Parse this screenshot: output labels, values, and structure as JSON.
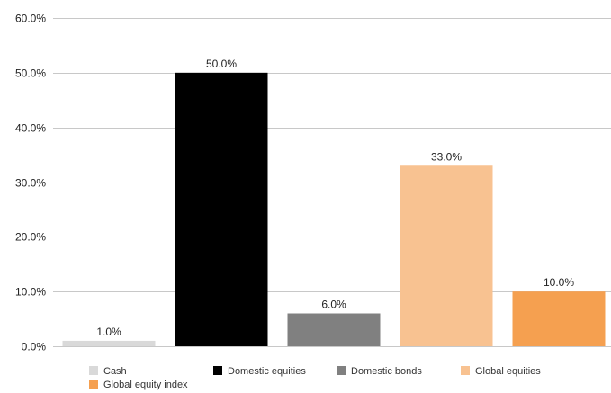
{
  "chart_data": {
    "type": "bar",
    "title": "",
    "xlabel": "",
    "ylabel": "",
    "ylim": [
      0,
      60
    ],
    "y_ticks": [
      0,
      10,
      20,
      30,
      40,
      50,
      60
    ],
    "y_tick_labels": [
      "0.0%",
      "10.0%",
      "20.0%",
      "30.0%",
      "40.0%",
      "50.0%",
      "60.0%"
    ],
    "grid": true,
    "legend_position": "bottom",
    "categories": [
      "Cash",
      "Domestic equities",
      "Domestic bonds",
      "Global equities",
      "Global equity index"
    ],
    "values": [
      1.0,
      50.0,
      6.0,
      33.0,
      10.0
    ],
    "data_labels": [
      "1.0%",
      "50.0%",
      "6.0%",
      "33.0%",
      "10.0%"
    ],
    "colors": [
      "#d9d9d9",
      "#000000",
      "#808080",
      "#f8c291",
      "#f5a050"
    ]
  }
}
